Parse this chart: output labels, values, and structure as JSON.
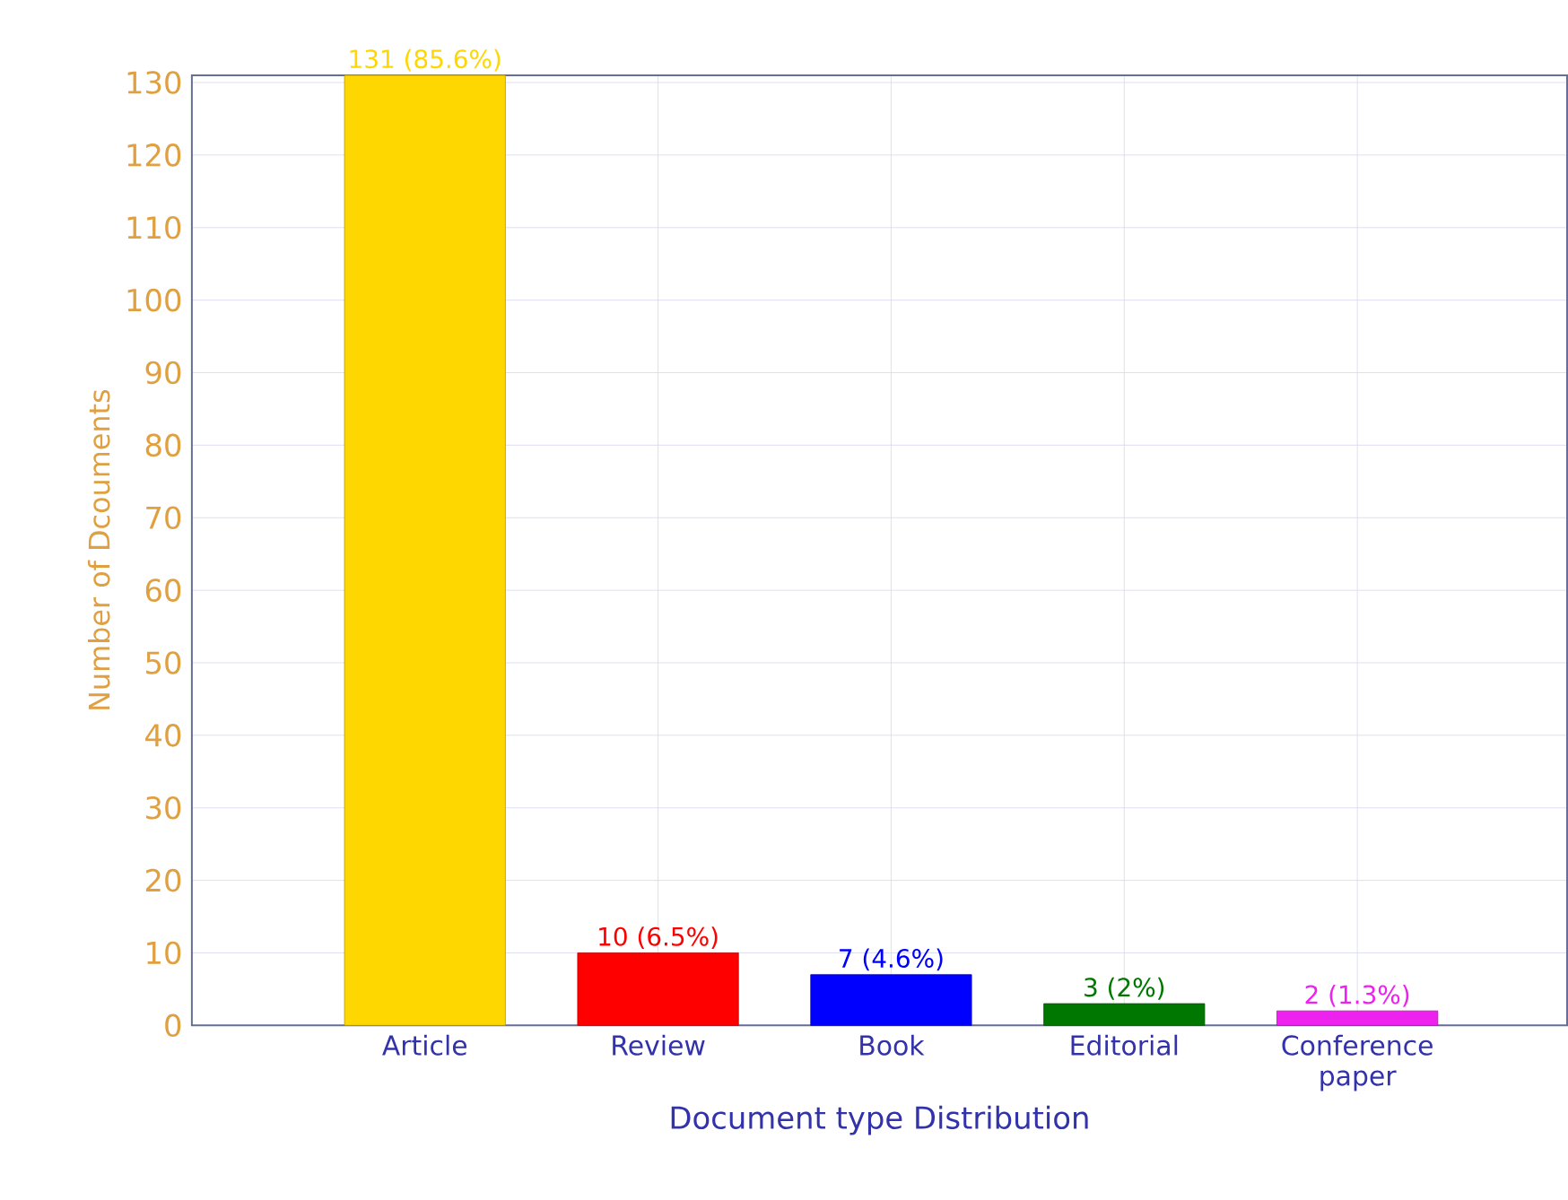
{
  "chart_data": {
    "type": "bar",
    "xlabel": "Document type Distribution",
    "ylabel": "Number of Dcouments",
    "categories": [
      "Article",
      "Review",
      "Book",
      "Editorial",
      "Conference paper"
    ],
    "values": [
      131,
      10,
      7,
      3,
      2
    ],
    "colors": [
      "#ffd700",
      "#ff0000",
      "#0000ff",
      "#007700",
      "#ee22ee"
    ],
    "value_labels": [
      "131  (85.6%)",
      "10  (6.5%)",
      "7  (4.6%)",
      "3  (2%)",
      "2  (1.3%)"
    ],
    "ylim": [
      0,
      131
    ],
    "yticks": [
      0,
      10,
      20,
      30,
      40,
      50,
      60,
      70,
      80,
      90,
      100,
      110,
      120,
      130
    ],
    "grid": true
  }
}
